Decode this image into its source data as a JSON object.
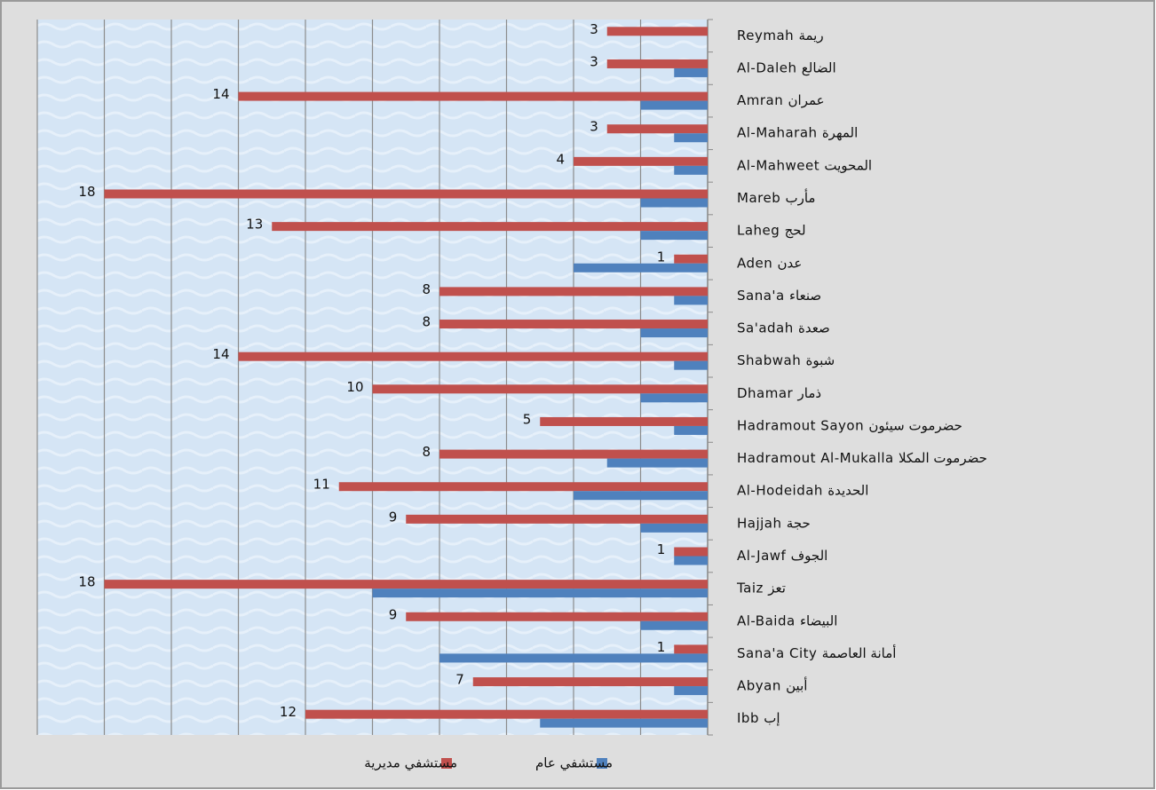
{
  "chart_data": {
    "type": "bar",
    "orientation": "horizontal",
    "x_reversed": true,
    "categories": [
      "Reymah ريمة",
      "Al-Daleh الضالع",
      "Amran عمران",
      "Al-Maharah المهرة",
      "Al-Mahweet المحويت",
      "Mareb مأرب",
      "Laheg لحج",
      "Aden عدن",
      "Sana'a صنعاء",
      "Sa'adah صعدة",
      "Shabwah شبوة",
      "Dhamar ذمار",
      "Hadramout Sayon حضرموت سيئون",
      "Hadramout Al-Mukalla حضرموت المكلا",
      "Al-Hodeidah الحديدة",
      "Hajjah حجة",
      "Al-Jawf الجوف",
      "Taiz تعز",
      "Al-Baida البيضاء",
      "Sana'a City أمانة العاصمة",
      "Abyan أبين",
      "Ibb إب"
    ],
    "series": [
      {
        "name": "مستشفي مديرية",
        "color": "#c0504d",
        "values": [
          3,
          3,
          14,
          3,
          4,
          18,
          13,
          1,
          8,
          8,
          14,
          10,
          5,
          8,
          11,
          9,
          1,
          18,
          9,
          1,
          7,
          12
        ],
        "show_labels": true
      },
      {
        "name": "مستشفي عام",
        "color": "#4f81bd",
        "values": [
          0,
          1,
          2,
          1,
          1,
          2,
          2,
          4,
          1,
          2,
          1,
          2,
          1,
          3,
          4,
          2,
          1,
          10,
          2,
          8,
          1,
          5
        ],
        "show_labels": false
      }
    ],
    "xlim": [
      0,
      20
    ],
    "xticks": [
      0,
      2,
      4,
      6,
      8,
      10,
      12,
      14,
      16,
      18,
      20
    ],
    "grid": true,
    "legend": "bottom"
  }
}
